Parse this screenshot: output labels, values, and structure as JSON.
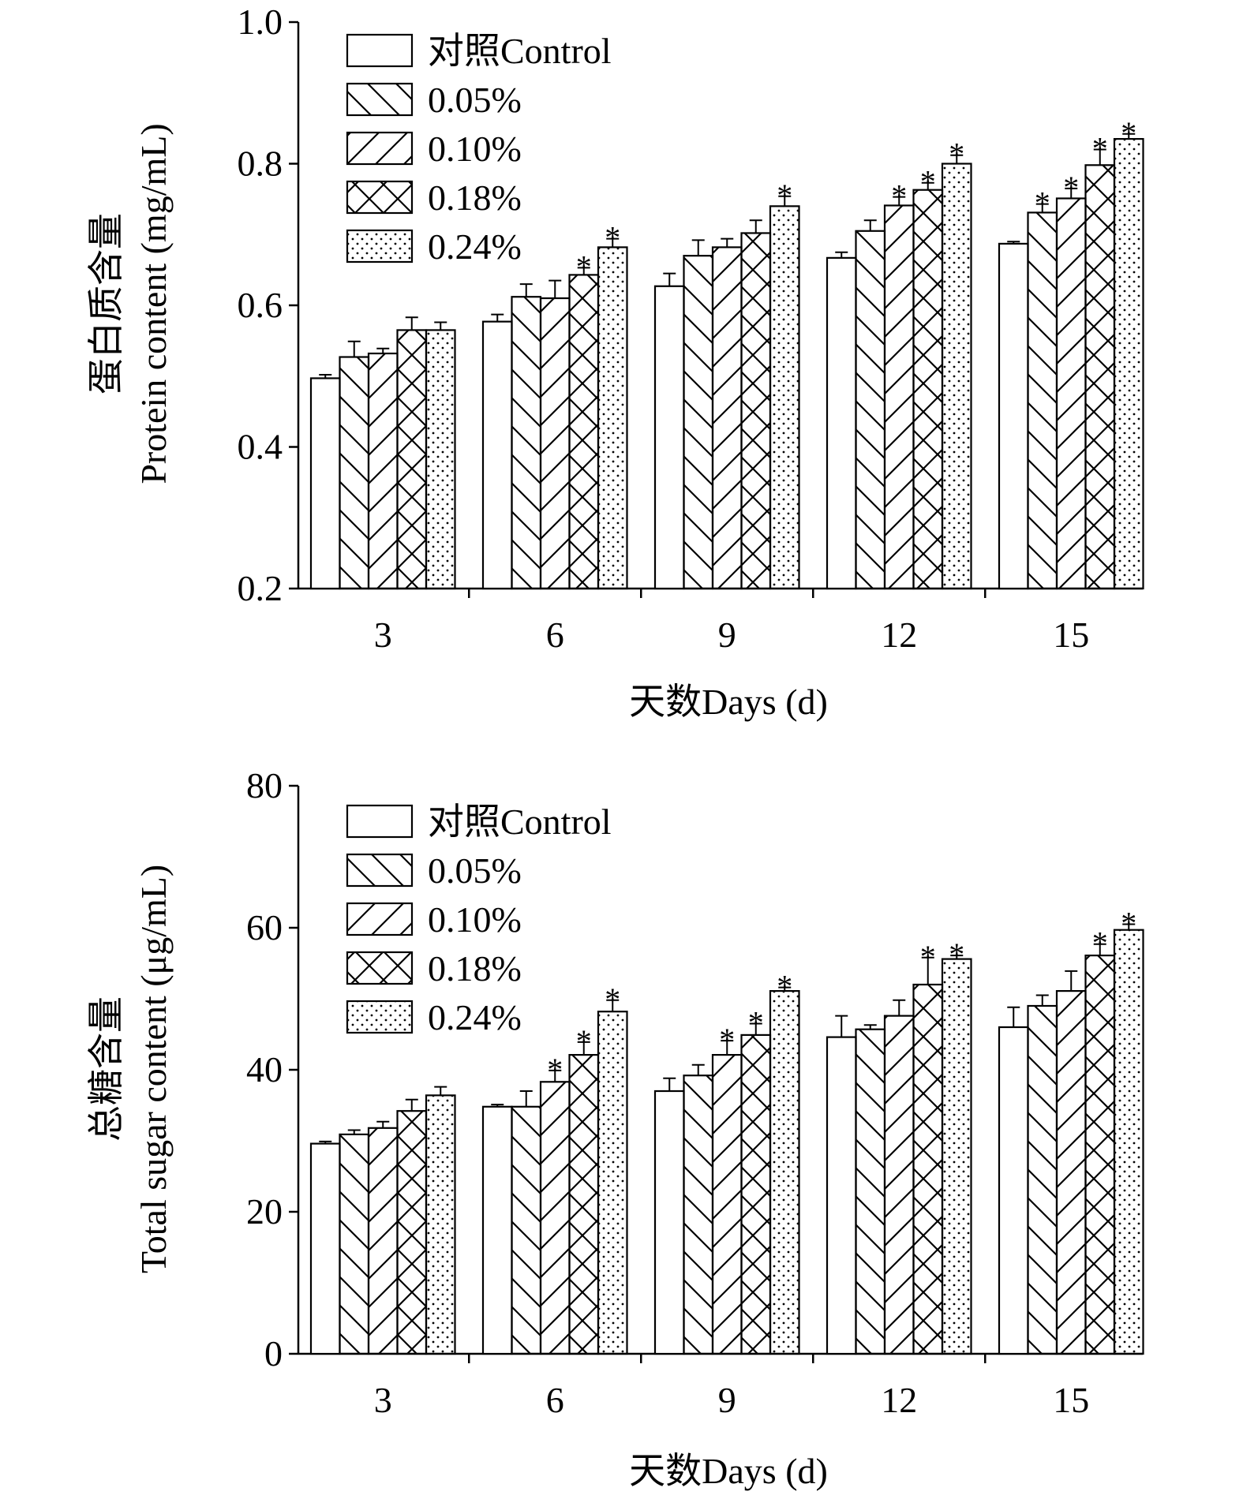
{
  "chart_data": [
    {
      "type": "bar",
      "xlabel": "天数Days (d)",
      "ylabel_cn": "蛋白质含量",
      "ylabel_en": "Protein content (mg/mL)",
      "ylim": [
        0.2,
        1.0
      ],
      "yticks": [
        0.2,
        0.4,
        0.6,
        0.8,
        1.0
      ],
      "ytick_labels": [
        "0.2",
        "0.4",
        "0.6",
        "0.8",
        "1.0"
      ],
      "categories": [
        "3",
        "6",
        "9",
        "12",
        "15"
      ],
      "series": [
        {
          "name": "对照Control",
          "pattern": "none",
          "values": [
            0.497,
            0.577,
            0.627,
            0.667,
            0.687
          ],
          "errors": [
            0.005,
            0.01,
            0.018,
            0.008,
            0.003
          ],
          "sig": [
            false,
            false,
            false,
            false,
            false
          ]
        },
        {
          "name": "0.05%",
          "pattern": "back",
          "values": [
            0.527,
            0.612,
            0.67,
            0.705,
            0.731
          ],
          "errors": [
            0.022,
            0.018,
            0.022,
            0.015,
            0.012
          ],
          "sig": [
            false,
            false,
            false,
            false,
            true
          ]
        },
        {
          "name": "0.10%",
          "pattern": "fwd",
          "values": [
            0.532,
            0.61,
            0.682,
            0.741,
            0.751
          ],
          "errors": [
            0.007,
            0.025,
            0.012,
            0.012,
            0.014
          ],
          "sig": [
            false,
            false,
            false,
            true,
            true
          ]
        },
        {
          "name": "0.18%",
          "pattern": "cross",
          "values": [
            0.565,
            0.643,
            0.702,
            0.763,
            0.798
          ],
          "errors": [
            0.018,
            0.01,
            0.018,
            0.01,
            0.022
          ],
          "sig": [
            false,
            true,
            false,
            true,
            true
          ]
        },
        {
          "name": "0.24%",
          "pattern": "dots",
          "values": [
            0.565,
            0.682,
            0.74,
            0.8,
            0.835
          ],
          "errors": [
            0.011,
            0.012,
            0.014,
            0.012,
            0.007
          ],
          "sig": [
            false,
            true,
            true,
            true,
            true
          ]
        }
      ]
    },
    {
      "type": "bar",
      "xlabel": "天数Days (d)",
      "ylabel_cn": "总糖含量",
      "ylabel_en": "Total sugar content (μg/mL)",
      "ylim": [
        0,
        80
      ],
      "yticks": [
        0,
        20,
        40,
        60,
        80
      ],
      "ytick_labels": [
        "0",
        "20",
        "40",
        "60",
        "80"
      ],
      "categories": [
        "3",
        "6",
        "9",
        "12",
        "15"
      ],
      "series": [
        {
          "name": "对照Control",
          "pattern": "none",
          "values": [
            29.6,
            34.8,
            37.0,
            44.6,
            46.0
          ],
          "errors": [
            0.3,
            0.3,
            1.8,
            3.0,
            2.8
          ],
          "sig": [
            false,
            false,
            false,
            false,
            false
          ]
        },
        {
          "name": "0.05%",
          "pattern": "back",
          "values": [
            30.9,
            34.8,
            39.2,
            45.7,
            49.0
          ],
          "errors": [
            0.6,
            2.2,
            1.5,
            0.6,
            1.5
          ],
          "sig": [
            false,
            false,
            false,
            false,
            false
          ]
        },
        {
          "name": "0.10%",
          "pattern": "fwd",
          "values": [
            31.8,
            38.3,
            42.1,
            47.6,
            51.1
          ],
          "errors": [
            0.9,
            1.6,
            2.0,
            2.2,
            2.8
          ],
          "sig": [
            false,
            true,
            true,
            false,
            false
          ]
        },
        {
          "name": "0.18%",
          "pattern": "cross",
          "values": [
            34.2,
            42.1,
            44.9,
            52.0,
            56.1
          ],
          "errors": [
            1.6,
            1.8,
            1.6,
            3.8,
            1.6
          ],
          "sig": [
            false,
            true,
            true,
            true,
            true
          ]
        },
        {
          "name": "0.24%",
          "pattern": "dots",
          "values": [
            36.4,
            48.2,
            51.1,
            55.6,
            59.7
          ],
          "errors": [
            1.2,
            1.6,
            0.5,
            0.5,
            0.8
          ],
          "sig": [
            false,
            true,
            true,
            true,
            true
          ]
        }
      ]
    }
  ]
}
